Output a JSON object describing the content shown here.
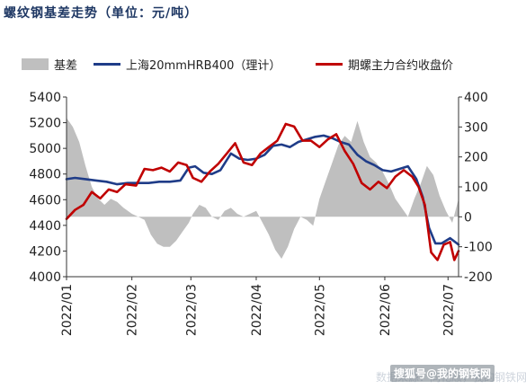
{
  "header": {
    "title": "螺纹钢基差走势（单位：元/吨）"
  },
  "legend": {
    "basis_label": "基差",
    "spot_label": "上海20mmHRB400（理计）",
    "futures_label": "期螺主力合约收盘价"
  },
  "colors": {
    "title": "#1f3864",
    "basis": "#bfbfbf",
    "spot": "#1f3c88",
    "futures": "#c00000",
    "axis": "#333333",
    "zero_line": "#ffffff"
  },
  "watermark": {
    "faint_text": "数据来源：同花顺，我的钢铁网",
    "main_text": "搜狐号@我的钢铁网"
  },
  "chart_data": {
    "type": "line",
    "x_tick_labels": [
      "2022/01",
      "2022/02",
      "2022/03",
      "2022/04",
      "2022/05",
      "2022/06",
      "2022/07"
    ],
    "x_range": [
      "2022-01-01",
      "2022-07-06"
    ],
    "ylim_left": [
      4000,
      5400
    ],
    "yticks_left": [
      4000,
      4200,
      4400,
      4600,
      4800,
      5000,
      5200,
      5400
    ],
    "ylim_right": [
      -200,
      400
    ],
    "yticks_right": [
      -200,
      -100,
      0,
      100,
      200,
      300,
      400
    ],
    "grid": false,
    "legend_position": "top",
    "series": [
      {
        "name": "基差",
        "type": "area",
        "axis": "right",
        "points": [
          [
            "2022-01-01",
            330
          ],
          [
            "2022-01-04",
            300
          ],
          [
            "2022-01-07",
            250
          ],
          [
            "2022-01-10",
            170
          ],
          [
            "2022-01-13",
            100
          ],
          [
            "2022-01-16",
            60
          ],
          [
            "2022-01-19",
            40
          ],
          [
            "2022-01-22",
            60
          ],
          [
            "2022-01-25",
            50
          ],
          [
            "2022-01-28",
            30
          ],
          [
            "2022-02-01",
            10
          ],
          [
            "2022-02-04",
            0
          ],
          [
            "2022-02-07",
            -10
          ],
          [
            "2022-02-10",
            -60
          ],
          [
            "2022-02-13",
            -90
          ],
          [
            "2022-02-16",
            -100
          ],
          [
            "2022-02-19",
            -100
          ],
          [
            "2022-02-22",
            -80
          ],
          [
            "2022-02-25",
            -50
          ],
          [
            "2022-02-28",
            -20
          ],
          [
            "2022-03-02",
            10
          ],
          [
            "2022-03-05",
            40
          ],
          [
            "2022-03-08",
            30
          ],
          [
            "2022-03-11",
            0
          ],
          [
            "2022-03-14",
            -10
          ],
          [
            "2022-03-17",
            20
          ],
          [
            "2022-03-20",
            30
          ],
          [
            "2022-03-23",
            10
          ],
          [
            "2022-03-26",
            0
          ],
          [
            "2022-03-29",
            10
          ],
          [
            "2022-04-01",
            20
          ],
          [
            "2022-04-04",
            -20
          ],
          [
            "2022-04-07",
            -60
          ],
          [
            "2022-04-10",
            -110
          ],
          [
            "2022-04-13",
            -140
          ],
          [
            "2022-04-16",
            -100
          ],
          [
            "2022-04-19",
            -40
          ],
          [
            "2022-04-22",
            0
          ],
          [
            "2022-04-25",
            -10
          ],
          [
            "2022-04-28",
            -30
          ],
          [
            "2022-05-01",
            60
          ],
          [
            "2022-05-04",
            120
          ],
          [
            "2022-05-07",
            180
          ],
          [
            "2022-05-10",
            240
          ],
          [
            "2022-05-13",
            270
          ],
          [
            "2022-05-16",
            250
          ],
          [
            "2022-05-19",
            320
          ],
          [
            "2022-05-22",
            250
          ],
          [
            "2022-05-25",
            200
          ],
          [
            "2022-05-28",
            180
          ],
          [
            "2022-05-31",
            150
          ],
          [
            "2022-06-03",
            110
          ],
          [
            "2022-06-06",
            60
          ],
          [
            "2022-06-09",
            30
          ],
          [
            "2022-06-12",
            0
          ],
          [
            "2022-06-15",
            60
          ],
          [
            "2022-06-18",
            110
          ],
          [
            "2022-06-21",
            170
          ],
          [
            "2022-06-24",
            140
          ],
          [
            "2022-06-27",
            70
          ],
          [
            "2022-06-30",
            20
          ],
          [
            "2022-07-03",
            -20
          ],
          [
            "2022-07-06",
            60
          ]
        ]
      },
      {
        "name": "上海20mmHRB400（理计）",
        "type": "line",
        "axis": "left",
        "points": [
          [
            "2022-01-01",
            4760
          ],
          [
            "2022-01-05",
            4770
          ],
          [
            "2022-01-10",
            4760
          ],
          [
            "2022-01-15",
            4750
          ],
          [
            "2022-01-20",
            4740
          ],
          [
            "2022-01-25",
            4720
          ],
          [
            "2022-01-30",
            4730
          ],
          [
            "2022-02-04",
            4730
          ],
          [
            "2022-02-09",
            4730
          ],
          [
            "2022-02-14",
            4740
          ],
          [
            "2022-02-19",
            4740
          ],
          [
            "2022-02-24",
            4750
          ],
          [
            "2022-02-28",
            4850
          ],
          [
            "2022-03-03",
            4860
          ],
          [
            "2022-03-07",
            4810
          ],
          [
            "2022-03-11",
            4800
          ],
          [
            "2022-03-15",
            4830
          ],
          [
            "2022-03-20",
            4960
          ],
          [
            "2022-03-24",
            4920
          ],
          [
            "2022-03-28",
            4910
          ],
          [
            "2022-04-01",
            4920
          ],
          [
            "2022-04-05",
            4950
          ],
          [
            "2022-04-09",
            5020
          ],
          [
            "2022-04-13",
            5030
          ],
          [
            "2022-04-17",
            5010
          ],
          [
            "2022-04-21",
            5050
          ],
          [
            "2022-04-25",
            5070
          ],
          [
            "2022-04-29",
            5090
          ],
          [
            "2022-05-03",
            5100
          ],
          [
            "2022-05-07",
            5080
          ],
          [
            "2022-05-11",
            5050
          ],
          [
            "2022-05-15",
            5030
          ],
          [
            "2022-05-19",
            4950
          ],
          [
            "2022-05-23",
            4900
          ],
          [
            "2022-05-27",
            4870
          ],
          [
            "2022-05-31",
            4830
          ],
          [
            "2022-06-04",
            4820
          ],
          [
            "2022-06-08",
            4840
          ],
          [
            "2022-06-12",
            4860
          ],
          [
            "2022-06-16",
            4760
          ],
          [
            "2022-06-19",
            4620
          ],
          [
            "2022-06-22",
            4380
          ],
          [
            "2022-06-25",
            4260
          ],
          [
            "2022-06-28",
            4260
          ],
          [
            "2022-07-02",
            4300
          ],
          [
            "2022-07-06",
            4250
          ]
        ]
      },
      {
        "name": "期螺主力合约收盘价",
        "type": "line",
        "axis": "left",
        "points": [
          [
            "2022-01-01",
            4450
          ],
          [
            "2022-01-05",
            4520
          ],
          [
            "2022-01-09",
            4560
          ],
          [
            "2022-01-13",
            4660
          ],
          [
            "2022-01-17",
            4610
          ],
          [
            "2022-01-21",
            4680
          ],
          [
            "2022-01-25",
            4660
          ],
          [
            "2022-01-29",
            4720
          ],
          [
            "2022-02-03",
            4710
          ],
          [
            "2022-02-07",
            4840
          ],
          [
            "2022-02-11",
            4830
          ],
          [
            "2022-02-15",
            4850
          ],
          [
            "2022-02-19",
            4820
          ],
          [
            "2022-02-23",
            4890
          ],
          [
            "2022-02-27",
            4870
          ],
          [
            "2022-03-02",
            4770
          ],
          [
            "2022-03-06",
            4740
          ],
          [
            "2022-03-10",
            4820
          ],
          [
            "2022-03-14",
            4880
          ],
          [
            "2022-03-18",
            4960
          ],
          [
            "2022-03-22",
            5040
          ],
          [
            "2022-03-26",
            4890
          ],
          [
            "2022-03-30",
            4870
          ],
          [
            "2022-04-03",
            4960
          ],
          [
            "2022-04-07",
            5010
          ],
          [
            "2022-04-11",
            5060
          ],
          [
            "2022-04-15",
            5190
          ],
          [
            "2022-04-19",
            5170
          ],
          [
            "2022-04-23",
            5060
          ],
          [
            "2022-04-27",
            5060
          ],
          [
            "2022-05-01",
            5010
          ],
          [
            "2022-05-05",
            5070
          ],
          [
            "2022-05-09",
            5110
          ],
          [
            "2022-05-13",
            4980
          ],
          [
            "2022-05-17",
            4880
          ],
          [
            "2022-05-21",
            4730
          ],
          [
            "2022-05-25",
            4680
          ],
          [
            "2022-05-29",
            4740
          ],
          [
            "2022-06-02",
            4690
          ],
          [
            "2022-06-06",
            4780
          ],
          [
            "2022-06-10",
            4830
          ],
          [
            "2022-06-14",
            4780
          ],
          [
            "2022-06-17",
            4700
          ],
          [
            "2022-06-20",
            4560
          ],
          [
            "2022-06-23",
            4190
          ],
          [
            "2022-06-26",
            4130
          ],
          [
            "2022-06-29",
            4250
          ],
          [
            "2022-07-02",
            4270
          ],
          [
            "2022-07-04",
            4130
          ],
          [
            "2022-07-06",
            4200
          ]
        ]
      }
    ]
  }
}
